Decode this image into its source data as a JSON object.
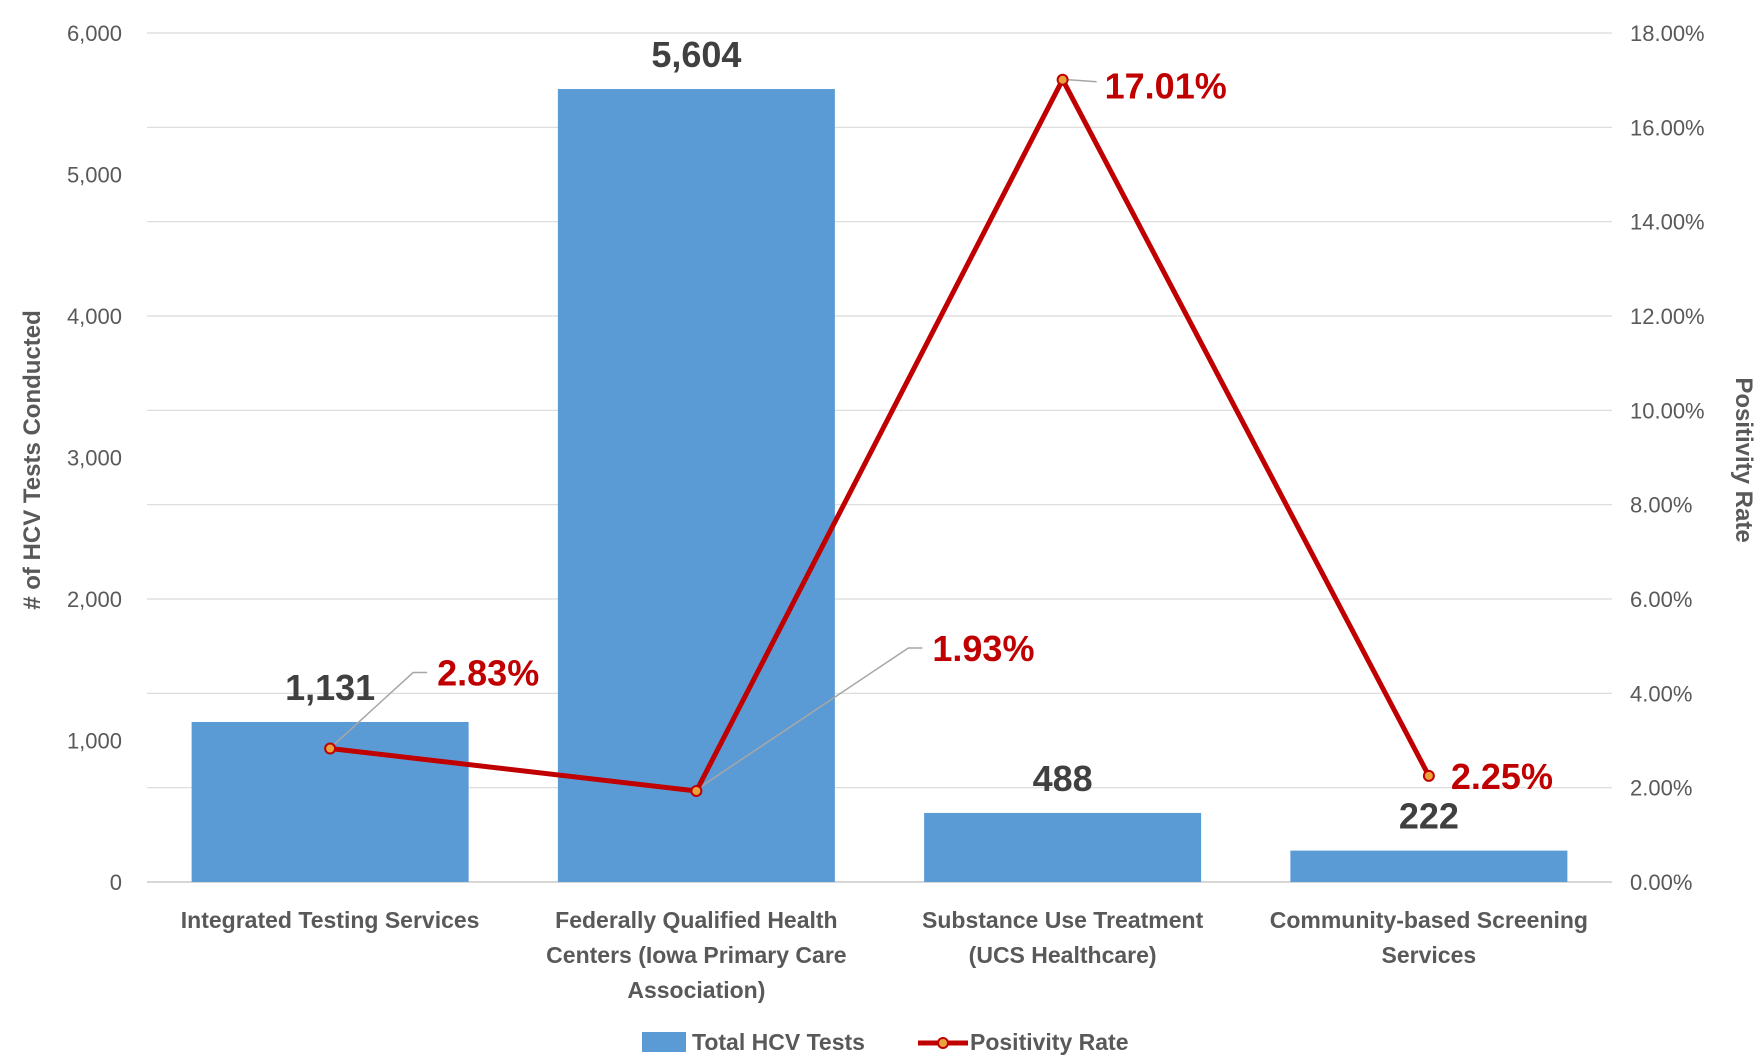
{
  "chart_data": {
    "type": "bar",
    "categories": [
      [
        "Integrated Testing Services"
      ],
      [
        "Federally Qualified Health",
        "Centers (Iowa Primary Care",
        "Association)"
      ],
      [
        "Substance Use Treatment",
        "(UCS Healthcare)"
      ],
      [
        "Community-based Screening",
        "Services"
      ]
    ],
    "series": [
      {
        "name": "Total HCV Tests",
        "type": "bar",
        "axis": "left",
        "values": [
          1131,
          5604,
          488,
          222
        ],
        "labels": [
          "1,131",
          "5,604",
          "488",
          "222"
        ],
        "color": "#5b9bd5"
      },
      {
        "name": "Positivity Rate",
        "type": "line",
        "axis": "right",
        "values": [
          2.83,
          1.93,
          17.01,
          2.25
        ],
        "labels": [
          "2.83%",
          "1.93%",
          "17.01%",
          "2.25%"
        ],
        "color": "#c00000"
      }
    ],
    "ylabel": "# of HCV Tests Conducted",
    "y2label": "Positivity Rate",
    "ylim": [
      0,
      6000
    ],
    "y2lim": [
      0,
      18
    ],
    "yticks": [
      "0",
      "1,000",
      "2,000",
      "3,000",
      "4,000",
      "5,000",
      "6,000"
    ],
    "y2ticks": [
      "0.00%",
      "2.00%",
      "4.00%",
      "6.00%",
      "8.00%",
      "10.00%",
      "12.00%",
      "14.00%",
      "16.00%",
      "18.00%"
    ],
    "grid": true,
    "legend": "bottom"
  }
}
